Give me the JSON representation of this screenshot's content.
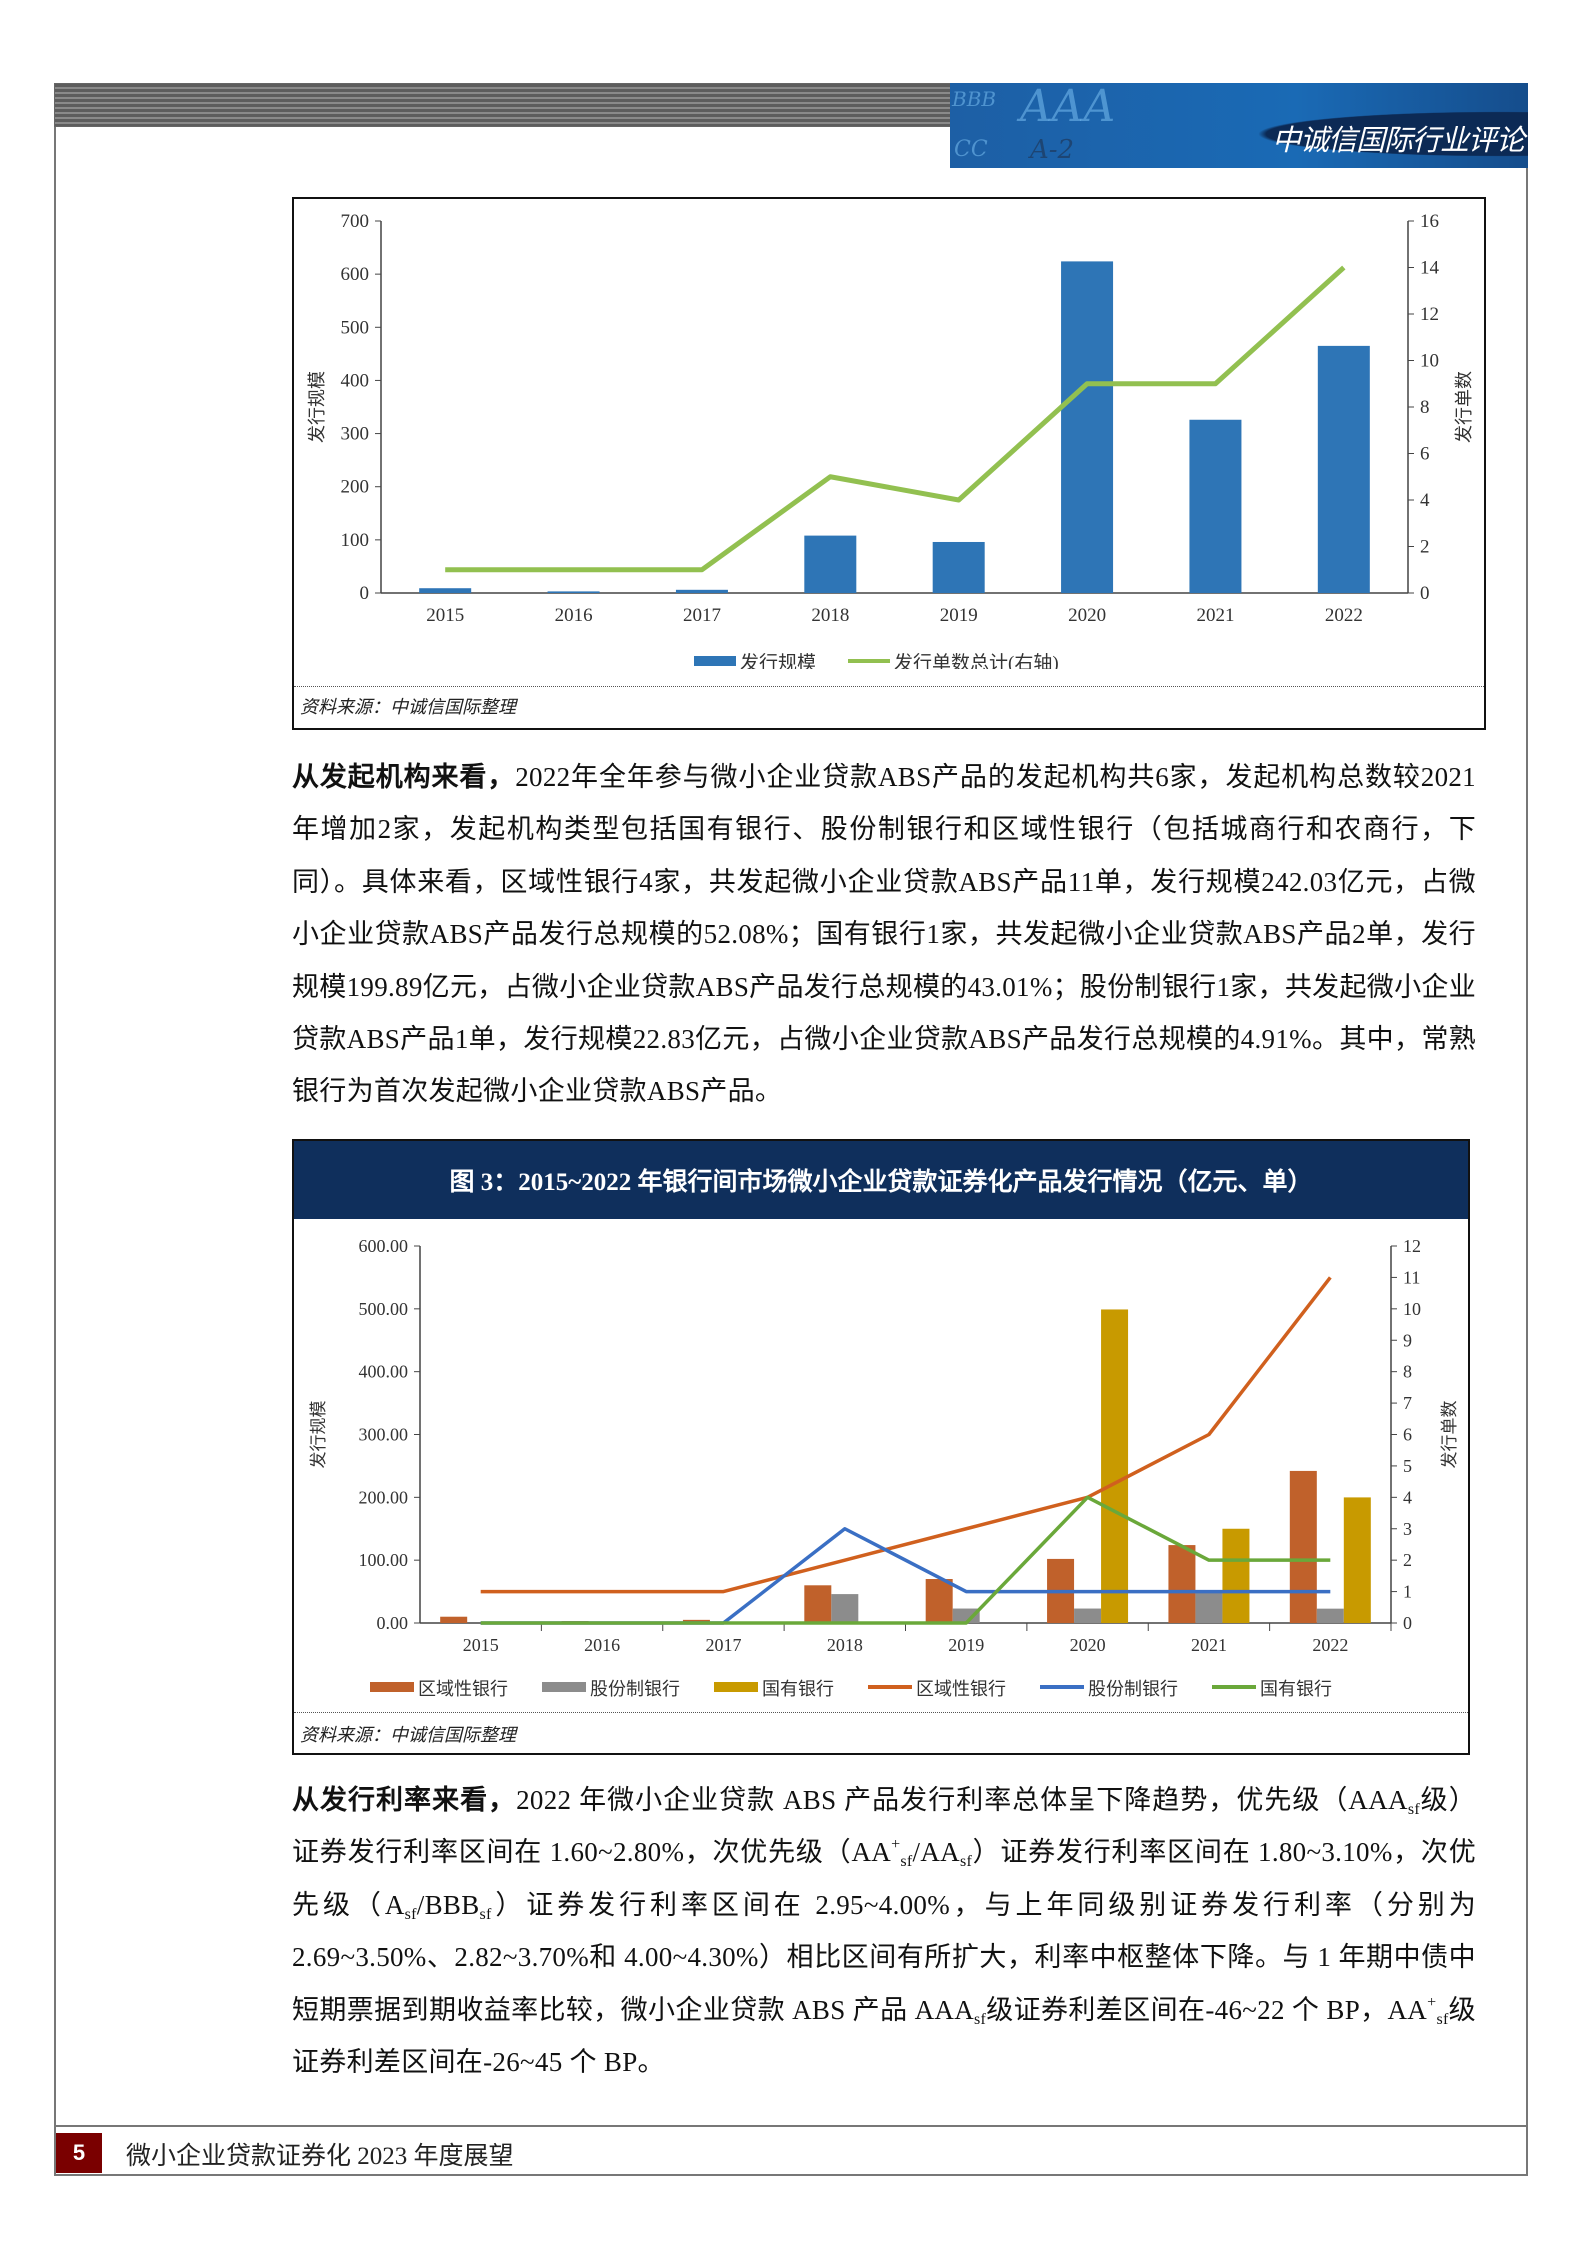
{
  "header": {
    "title": "中诚信国际行业评论",
    "banner_letters": [
      "AAA",
      "A",
      "BBB",
      "CC",
      "A-2",
      "CC"
    ]
  },
  "figure2": {
    "source": "资料来源：中诚信国际整理",
    "chart_data": {
      "type": "bar+line",
      "categories": [
        "2015",
        "2016",
        "2017",
        "2018",
        "2019",
        "2020",
        "2021",
        "2022"
      ],
      "ylabel": "发行规模",
      "y2label": "发行单数",
      "ylim": [
        0,
        700
      ],
      "yticks": [
        "0",
        "100",
        "200",
        "300",
        "400",
        "500",
        "600",
        "700"
      ],
      "y2lim": [
        0,
        16
      ],
      "y2ticks": [
        "0",
        "2",
        "4",
        "6",
        "8",
        "10",
        "12",
        "14",
        "16"
      ],
      "series": [
        {
          "name": "发行规模",
          "type": "bar",
          "axis": "left",
          "color": "#2e75b6",
          "values": [
            9,
            3,
            6,
            108,
            96,
            624,
            326,
            465
          ]
        },
        {
          "name": "发行单数总计(右轴)",
          "type": "line",
          "axis": "right",
          "color": "#92c050",
          "values": [
            1,
            1,
            1,
            5,
            4,
            9,
            9,
            14
          ]
        }
      ],
      "legend_position": "bottom"
    }
  },
  "paragraph1": {
    "lead": "从发起机构来看，",
    "body": "2022年全年参与微小企业贷款ABS产品的发起机构共6家，发起机构总数较2021年增加2家，发起机构类型包括国有银行、股份制银行和区域性银行（包括城商行和农商行，下同）。具体来看，区域性银行4家，共发起微小企业贷款ABS产品11单，发行规模242.03亿元，占微小企业贷款ABS产品发行总规模的52.08%；国有银行1家，共发起微小企业贷款ABS产品2单，发行规模199.89亿元，占微小企业贷款ABS产品发行总规模的43.01%；股份制银行1家，共发起微小企业贷款ABS产品1单，发行规模22.83亿元，占微小企业贷款ABS产品发行总规模的4.91%。其中，常熟银行为首次发起微小企业贷款ABS产品。"
  },
  "figure3": {
    "title": "图 3：2015~2022 年银行间市场微小企业贷款证券化产品发行情况（亿元、单）",
    "source": "资料来源：中诚信国际整理",
    "chart_data": {
      "type": "bar+line",
      "categories": [
        "2015",
        "2016",
        "2017",
        "2018",
        "2019",
        "2020",
        "2021",
        "2022"
      ],
      "ylabel": "发行规模",
      "y2label": "发行单数",
      "ylim": [
        0,
        600
      ],
      "yticks": [
        "0.00",
        "100.00",
        "200.00",
        "300.00",
        "400.00",
        "500.00",
        "600.00"
      ],
      "y2lim": [
        0,
        12
      ],
      "y2ticks": [
        "0",
        "1",
        "2",
        "3",
        "4",
        "5",
        "6",
        "7",
        "8",
        "9",
        "10",
        "11",
        "12"
      ],
      "series": [
        {
          "name": "区域性银行",
          "type": "bar",
          "axis": "left",
          "color": "#c0612b",
          "values": [
            10,
            3,
            5,
            60,
            70,
            102,
            124,
            242.03
          ]
        },
        {
          "name": "股份制银行",
          "type": "bar",
          "axis": "left",
          "color": "#8c8c8c",
          "values": [
            0,
            0,
            0,
            46,
            23,
            23,
            50,
            22.83
          ]
        },
        {
          "name": "国有银行",
          "type": "bar",
          "axis": "left",
          "color": "#c89a00",
          "values": [
            0,
            0,
            0,
            0,
            0,
            499,
            150,
            199.89
          ]
        },
        {
          "name": "区域性银行",
          "type": "line",
          "axis": "right",
          "color": "#d0601e",
          "values": [
            1,
            1,
            1,
            2,
            3,
            4,
            6,
            11
          ]
        },
        {
          "name": "股份制银行",
          "type": "line",
          "axis": "right",
          "color": "#3a6fc4",
          "values": [
            0,
            0,
            0,
            3,
            1,
            1,
            1,
            1
          ]
        },
        {
          "name": "国有银行",
          "type": "line",
          "axis": "right",
          "color": "#6aa83a",
          "values": [
            0,
            0,
            0,
            0,
            0,
            4,
            2,
            2
          ]
        }
      ],
      "legend_position": "bottom"
    }
  },
  "paragraph2": {
    "segments": [
      {
        "t": "从发行利率来看，",
        "s": "b"
      },
      {
        "t": "2022 年微小企业贷款 ABS 产品发行利率总体呈下降趋势，优先级（AAA"
      },
      {
        "t": "sf",
        "s": "sub"
      },
      {
        "t": "级）证券发行利率区间在 1.60~2.80%，次优先级（AA"
      },
      {
        "t": "+",
        "s": "sup"
      },
      {
        "t": "sf",
        "s": "sub"
      },
      {
        "t": "/AA"
      },
      {
        "t": "sf",
        "s": "sub"
      },
      {
        "t": "）证券发行利率区间在 1.80~3.10%，次优先级（A"
      },
      {
        "t": "sf",
        "s": "sub"
      },
      {
        "t": "/BBB"
      },
      {
        "t": "sf",
        "s": "sub"
      },
      {
        "t": "）证券发行利率区间在 2.95~4.00%，与上年同级别证券发行利率（分别为 2.69~3.50%、2.82~3.70%和 4.00~4.30%）相比区间有所扩大，利率中枢整体下降。与 1 年期中债中短期票据到期收益率比较，微小企业贷款 ABS 产品 AAA"
      },
      {
        "t": "sf",
        "s": "sub"
      },
      {
        "t": "级证券利差区间在-46~22 个 BP，AA"
      },
      {
        "t": "+",
        "s": "sup"
      },
      {
        "t": "sf",
        "s": "sub"
      },
      {
        "t": "级证券利差区间在-26~45 个 BP。"
      }
    ]
  },
  "footer": {
    "page_number": "5",
    "title": "微小企业贷款证券化 2023 年度展望"
  }
}
